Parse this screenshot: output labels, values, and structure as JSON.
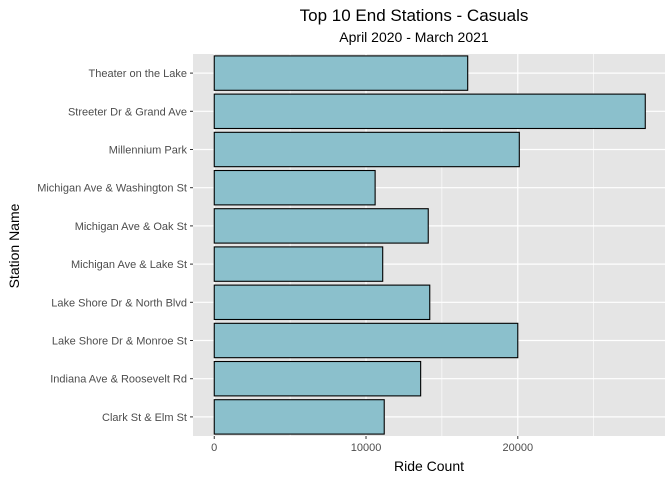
{
  "chart_data": {
    "type": "bar",
    "orientation": "horizontal",
    "title": "Top 10 End Stations - Casuals",
    "subtitle": "April 2020 - March 2021",
    "xlabel": "Ride Count",
    "ylabel": "Station Name",
    "categories": [
      "Theater on the Lake",
      "Streeter Dr & Grand Ave",
      "Millennium Park",
      "Michigan Ave & Washington St",
      "Michigan Ave & Oak St",
      "Michigan Ave & Lake St",
      "Lake Shore Dr & North Blvd",
      "Lake Shore Dr & Monroe St",
      "Indiana Ave & Roosevelt Rd",
      "Clark St & Elm St"
    ],
    "values": [
      16700,
      28400,
      20100,
      10600,
      14100,
      11100,
      14200,
      20000,
      13600,
      11200
    ],
    "xlim": [
      -1400,
      29700
    ],
    "xticks": [
      0,
      10000,
      20000
    ],
    "xtick_labels": [
      "0",
      "10000",
      "20000"
    ],
    "grid": true,
    "colors": {
      "bar_fill": "#8bc0cc",
      "bar_stroke": "#000000",
      "panel_background": "#e5e5e5",
      "gridline": "#ffffff"
    }
  }
}
